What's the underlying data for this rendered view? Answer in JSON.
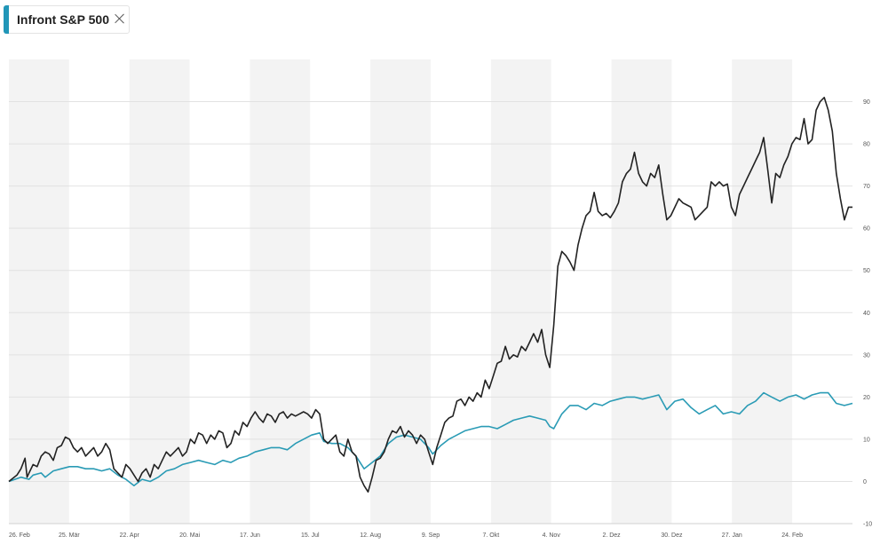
{
  "chip": {
    "label": "Infront S&P 500",
    "accent_color": "#2196b8"
  },
  "chart_data": {
    "type": "line",
    "x_ticks": [
      "26. Feb",
      "25. Mär",
      "22. Apr",
      "20. Mai",
      "17. Jun",
      "15. Jul",
      "12. Aug",
      "9. Sep",
      "7. Okt",
      "4. Nov",
      "2. Dez",
      "30. Dez",
      "27. Jan",
      "24. Feb"
    ],
    "y_ticks": [
      -10,
      0,
      10,
      20,
      30,
      40,
      50,
      60,
      70,
      80,
      90
    ],
    "ylim": [
      -10,
      100
    ],
    "grid": true,
    "series": [
      {
        "color": "#222222",
        "points": [
          [
            0,
            0
          ],
          [
            2,
            1.5
          ],
          [
            3,
            3
          ],
          [
            4,
            5.5
          ],
          [
            4.5,
            1
          ],
          [
            5,
            2
          ],
          [
            6,
            4
          ],
          [
            7,
            3.5
          ],
          [
            8,
            6
          ],
          [
            9,
            7
          ],
          [
            10,
            6.5
          ],
          [
            11,
            5
          ],
          [
            12,
            8
          ],
          [
            13,
            8.5
          ],
          [
            14,
            10.5
          ],
          [
            15,
            10
          ],
          [
            16,
            8
          ],
          [
            17,
            7
          ],
          [
            18,
            8
          ],
          [
            19,
            6
          ],
          [
            20,
            7
          ],
          [
            21,
            8
          ],
          [
            22,
            6
          ],
          [
            23,
            7
          ],
          [
            24,
            9
          ],
          [
            25,
            7.5
          ],
          [
            26,
            3
          ],
          [
            27,
            2
          ],
          [
            28,
            1
          ],
          [
            29,
            4
          ],
          [
            30,
            3
          ],
          [
            31,
            1.5
          ],
          [
            32,
            0
          ],
          [
            33,
            2
          ],
          [
            34,
            3
          ],
          [
            35,
            1
          ],
          [
            36,
            4
          ],
          [
            37,
            3
          ],
          [
            38,
            5
          ],
          [
            39,
            7
          ],
          [
            40,
            6
          ],
          [
            41,
            7
          ],
          [
            42,
            8
          ],
          [
            43,
            6
          ],
          [
            44,
            7
          ],
          [
            45,
            10
          ],
          [
            46,
            9
          ],
          [
            47,
            11.5
          ],
          [
            48,
            11
          ],
          [
            49,
            9
          ],
          [
            50,
            11
          ],
          [
            51,
            10
          ],
          [
            52,
            12
          ],
          [
            53,
            11.5
          ],
          [
            54,
            8
          ],
          [
            55,
            9
          ],
          [
            56,
            12
          ],
          [
            57,
            11
          ],
          [
            58,
            14
          ],
          [
            59,
            13
          ],
          [
            60,
            15
          ],
          [
            61,
            16.5
          ],
          [
            62,
            15
          ],
          [
            63,
            14
          ],
          [
            64,
            16
          ],
          [
            65,
            15.5
          ],
          [
            66,
            14
          ],
          [
            67,
            16
          ],
          [
            68,
            16.5
          ],
          [
            69,
            15
          ],
          [
            70,
            16
          ],
          [
            71,
            15.5
          ],
          [
            72,
            16
          ],
          [
            73,
            16.5
          ],
          [
            74,
            16
          ],
          [
            75,
            15
          ],
          [
            76,
            17
          ],
          [
            77,
            16
          ],
          [
            78,
            10
          ],
          [
            79,
            9
          ],
          [
            80,
            10
          ],
          [
            81,
            11
          ],
          [
            82,
            7
          ],
          [
            83,
            6
          ],
          [
            84,
            10
          ],
          [
            85,
            7
          ],
          [
            86,
            6
          ],
          [
            87,
            1
          ],
          [
            88,
            -1
          ],
          [
            89,
            -2.5
          ],
          [
            90,
            1
          ],
          [
            91,
            5
          ],
          [
            92,
            5.5
          ],
          [
            93,
            7
          ],
          [
            94,
            10
          ],
          [
            95,
            12
          ],
          [
            96,
            11.5
          ],
          [
            97,
            13
          ],
          [
            98,
            10.5
          ],
          [
            99,
            12
          ],
          [
            100,
            11
          ],
          [
            101,
            9
          ],
          [
            102,
            11
          ],
          [
            103,
            10
          ],
          [
            104,
            7
          ],
          [
            105,
            4
          ],
          [
            106,
            8
          ],
          [
            107,
            11
          ],
          [
            108,
            14
          ],
          [
            109,
            15
          ],
          [
            110,
            15.5
          ],
          [
            111,
            19
          ],
          [
            112,
            19.5
          ],
          [
            113,
            18
          ],
          [
            114,
            20
          ],
          [
            115,
            19
          ],
          [
            116,
            21
          ],
          [
            117,
            20
          ],
          [
            118,
            24
          ],
          [
            119,
            22
          ],
          [
            120,
            25
          ],
          [
            121,
            28
          ],
          [
            122,
            28.5
          ],
          [
            123,
            32
          ],
          [
            124,
            29
          ],
          [
            125,
            30
          ],
          [
            126,
            29.5
          ],
          [
            127,
            32
          ],
          [
            128,
            31
          ],
          [
            129,
            33
          ],
          [
            130,
            35
          ],
          [
            131,
            33
          ],
          [
            132,
            36
          ],
          [
            133,
            30
          ],
          [
            134,
            27
          ],
          [
            135,
            37
          ],
          [
            136,
            51
          ],
          [
            137,
            54.5
          ],
          [
            138,
            53.5
          ],
          [
            139,
            52
          ],
          [
            140,
            50
          ],
          [
            141,
            56
          ],
          [
            142,
            60
          ],
          [
            143,
            63
          ],
          [
            144,
            64
          ],
          [
            145,
            68.5
          ],
          [
            146,
            64
          ],
          [
            147,
            63
          ],
          [
            148,
            63.5
          ],
          [
            149,
            62.5
          ],
          [
            150,
            64
          ],
          [
            151,
            66
          ],
          [
            152,
            71
          ],
          [
            153,
            73
          ],
          [
            154,
            74
          ],
          [
            155,
            78
          ],
          [
            156,
            73
          ],
          [
            157,
            71
          ],
          [
            158,
            70
          ],
          [
            159,
            73
          ],
          [
            160,
            72
          ],
          [
            161,
            75
          ],
          [
            162,
            68
          ],
          [
            163,
            62
          ],
          [
            164,
            63
          ],
          [
            165,
            65
          ],
          [
            166,
            67
          ],
          [
            167,
            66
          ],
          [
            168,
            65.5
          ],
          [
            169,
            65
          ],
          [
            170,
            62
          ],
          [
            171,
            63
          ],
          [
            172,
            64
          ],
          [
            173,
            65
          ],
          [
            174,
            71
          ],
          [
            175,
            70
          ],
          [
            176,
            71
          ],
          [
            177,
            70
          ],
          [
            178,
            70.5
          ],
          [
            179,
            65
          ],
          [
            180,
            63
          ],
          [
            181,
            68
          ],
          [
            182,
            70
          ],
          [
            183,
            72
          ],
          [
            184,
            74
          ],
          [
            185,
            76
          ],
          [
            186,
            78
          ],
          [
            187,
            81.5
          ],
          [
            188,
            74
          ],
          [
            189,
            66
          ],
          [
            190,
            73
          ],
          [
            191,
            72
          ],
          [
            192,
            75
          ],
          [
            193,
            77
          ],
          [
            194,
            80
          ],
          [
            195,
            81.5
          ],
          [
            196,
            81
          ],
          [
            197,
            86
          ],
          [
            198,
            80
          ],
          [
            199,
            81
          ],
          [
            200,
            88
          ],
          [
            201,
            90
          ],
          [
            202,
            91
          ],
          [
            203,
            88
          ],
          [
            204,
            83
          ],
          [
            205,
            73
          ],
          [
            206,
            67
          ],
          [
            207,
            62
          ],
          [
            208,
            65
          ],
          [
            209,
            65
          ]
        ]
      },
      {
        "color": "#2a9bb5",
        "points": [
          [
            0,
            0
          ],
          [
            3,
            1
          ],
          [
            5,
            0.5
          ],
          [
            6,
            1.5
          ],
          [
            8,
            2
          ],
          [
            9,
            1
          ],
          [
            11,
            2.5
          ],
          [
            13,
            3
          ],
          [
            15,
            3.5
          ],
          [
            17,
            3.5
          ],
          [
            19,
            3
          ],
          [
            21,
            3
          ],
          [
            23,
            2.5
          ],
          [
            25,
            3
          ],
          [
            27,
            1.5
          ],
          [
            29,
            0.5
          ],
          [
            31,
            -1
          ],
          [
            33,
            0.5
          ],
          [
            35,
            0
          ],
          [
            37,
            1
          ],
          [
            39,
            2.5
          ],
          [
            41,
            3
          ],
          [
            43,
            4
          ],
          [
            45,
            4.5
          ],
          [
            47,
            5
          ],
          [
            49,
            4.5
          ],
          [
            51,
            4
          ],
          [
            53,
            5
          ],
          [
            55,
            4.5
          ],
          [
            57,
            5.5
          ],
          [
            59,
            6
          ],
          [
            61,
            7
          ],
          [
            63,
            7.5
          ],
          [
            65,
            8
          ],
          [
            67,
            8
          ],
          [
            69,
            7.5
          ],
          [
            71,
            9
          ],
          [
            73,
            10
          ],
          [
            75,
            11
          ],
          [
            77,
            11.5
          ],
          [
            78,
            9.5
          ],
          [
            80,
            9
          ],
          [
            82,
            9
          ],
          [
            84,
            8
          ],
          [
            86,
            6
          ],
          [
            88,
            3
          ],
          [
            90,
            4.5
          ],
          [
            92,
            6
          ],
          [
            94,
            9
          ],
          [
            96,
            10.5
          ],
          [
            98,
            11
          ],
          [
            100,
            10.5
          ],
          [
            102,
            10
          ],
          [
            104,
            8
          ],
          [
            105,
            6.5
          ],
          [
            107,
            8.5
          ],
          [
            109,
            10
          ],
          [
            111,
            11
          ],
          [
            113,
            12
          ],
          [
            115,
            12.5
          ],
          [
            117,
            13
          ],
          [
            119,
            13
          ],
          [
            121,
            12.5
          ],
          [
            123,
            13.5
          ],
          [
            125,
            14.5
          ],
          [
            127,
            15
          ],
          [
            129,
            15.5
          ],
          [
            131,
            15
          ],
          [
            133,
            14.5
          ],
          [
            134,
            13
          ],
          [
            135,
            12.5
          ],
          [
            137,
            16
          ],
          [
            139,
            18
          ],
          [
            141,
            18
          ],
          [
            143,
            17
          ],
          [
            145,
            18.5
          ],
          [
            147,
            18
          ],
          [
            149,
            19
          ],
          [
            151,
            19.5
          ],
          [
            153,
            20
          ],
          [
            155,
            20
          ],
          [
            157,
            19.5
          ],
          [
            159,
            20
          ],
          [
            161,
            20.5
          ],
          [
            163,
            17
          ],
          [
            165,
            19
          ],
          [
            167,
            19.5
          ],
          [
            169,
            17.5
          ],
          [
            171,
            16
          ],
          [
            173,
            17
          ],
          [
            175,
            18
          ],
          [
            177,
            16
          ],
          [
            179,
            16.5
          ],
          [
            181,
            16
          ],
          [
            183,
            18
          ],
          [
            185,
            19
          ],
          [
            187,
            21
          ],
          [
            189,
            20
          ],
          [
            191,
            19
          ],
          [
            193,
            20
          ],
          [
            195,
            20.5
          ],
          [
            197,
            19.5
          ],
          [
            199,
            20.5
          ],
          [
            201,
            21
          ],
          [
            203,
            21
          ],
          [
            205,
            18.5
          ],
          [
            207,
            18
          ],
          [
            209,
            18.5
          ]
        ]
      }
    ]
  }
}
